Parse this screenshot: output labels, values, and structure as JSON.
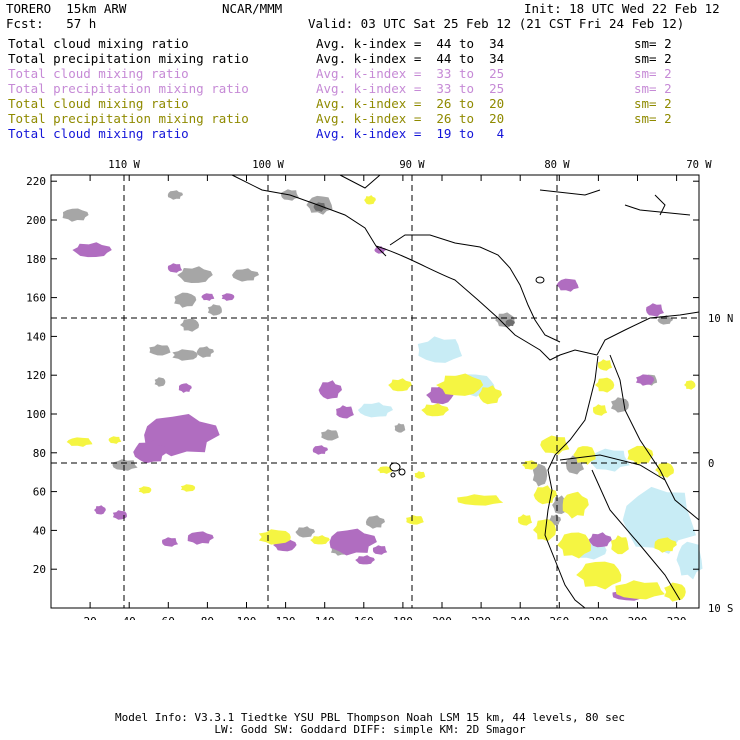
{
  "header": {
    "model": "TORERO  15km ARW",
    "org": "NCAR/MMM",
    "init": "Init: 18 UTC Wed 22 Feb 12",
    "fcst": "Fcst:   57 h",
    "valid": "Valid: 03 UTC Sat 25 Feb 12 (21 CST Fri 24 Feb 12)"
  },
  "legend_rows": [
    {
      "field": "Total cloud mixing ratio",
      "kindex": "Avg. k-index =  44 to  34",
      "sm": "sm= 2",
      "color": "#000000"
    },
    {
      "field": "Total precipitation mixing ratio",
      "kindex": "Avg. k-index =  44 to  34",
      "sm": "sm= 2",
      "color": "#000000"
    },
    {
      "field": "Total cloud mixing ratio",
      "kindex": "Avg. k-index =  33 to  25",
      "sm": "sm= 2",
      "color": "#c68ad6"
    },
    {
      "field": "Total precipitation mixing ratio",
      "kindex": "Avg. k-index =  33 to  25",
      "sm": "sm= 2",
      "color": "#c68ad6"
    },
    {
      "field": "Total cloud mixing ratio",
      "kindex": "Avg. k-index =  26 to  20",
      "sm": "sm= 2",
      "color": "#8f8a00"
    },
    {
      "field": "Total precipitation mixing ratio",
      "kindex": "Avg. k-index =  26 to  20",
      "sm": "sm= 2",
      "color": "#8f8a00"
    },
    {
      "field": "Total cloud mixing ratio",
      "kindex": "Avg. k-index =  19 to   4",
      "sm": "",
      "color": "#1414d8"
    }
  ],
  "map": {
    "lon_labels": [
      "110 W",
      "100 W",
      "90 W",
      "80 W",
      "70 W"
    ],
    "lat_labels": [
      "10 N",
      "0",
      "10 S"
    ],
    "y_grid_ticks": [
      "220",
      "200",
      "180",
      "160",
      "140",
      "120",
      "100",
      "80",
      "60",
      "40",
      "20"
    ],
    "x_grid_ticks": [
      "20",
      "40",
      "60",
      "80",
      "100",
      "120",
      "140",
      "160",
      "180",
      "200",
      "220",
      "240",
      "260",
      "280",
      "300",
      "320"
    ],
    "colors": {
      "gray": "#a6a6a6",
      "darkgray": "#6e6e6e",
      "violet": "#b06dc0",
      "yellow": "#f5f542",
      "lightblue": "#c8ecf5",
      "coast": "#000000"
    }
  },
  "footer": {
    "line1": "Model Info: V3.3.1   Tiedtke YSU PBL  Thompson    Noah LSM  15 km,   44 levels,   80 sec",
    "line2": "LW: Godd SW: Goddard DIFF: simple KM: 2D Smagor"
  }
}
